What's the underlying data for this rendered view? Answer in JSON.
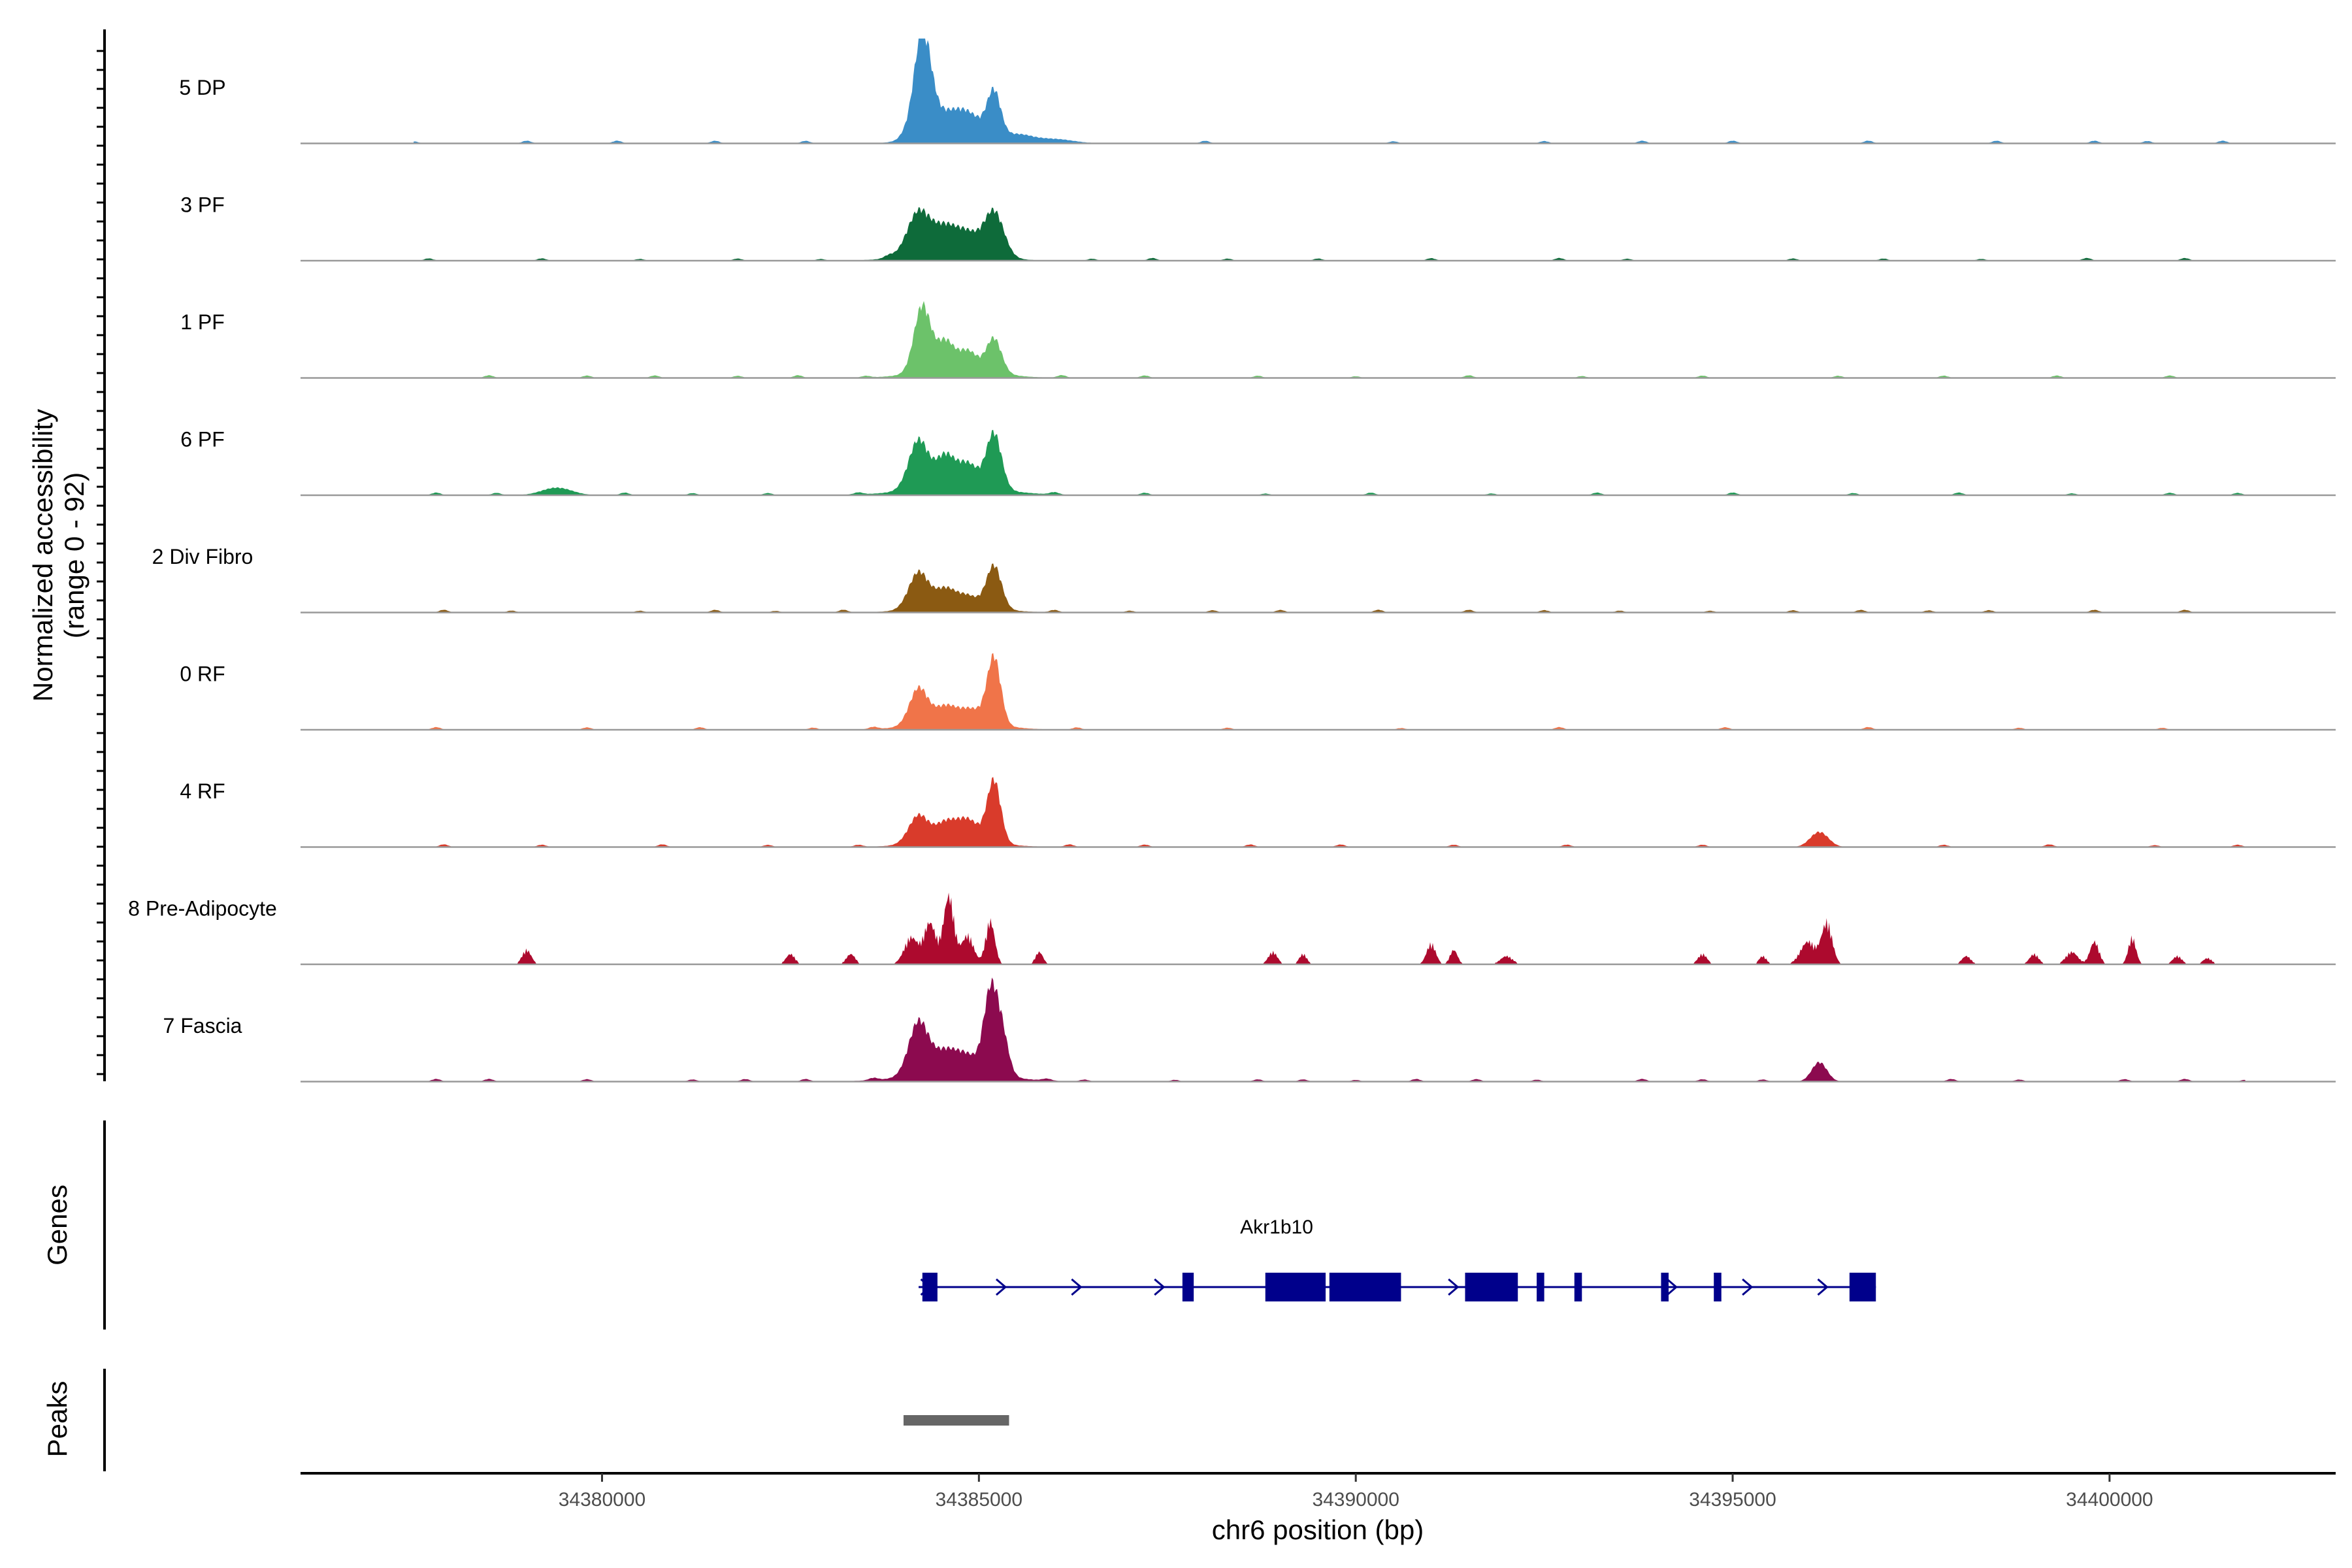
{
  "chart_data": {
    "type": "area",
    "title": "",
    "ylabel_line1": "Normalized accessibility",
    "ylabel_line2": "(range 0 - 92)",
    "ylim": [
      0,
      92
    ],
    "xlabel": "chr6 position (bp)",
    "xlim": [
      34376000,
      34403000
    ],
    "x_ticks": [
      34380000,
      34385000,
      34390000,
      34395000,
      34400000
    ],
    "x_tick_labels": [
      "34380000",
      "34385000",
      "34390000",
      "34395000",
      "34400000"
    ],
    "grid": false,
    "tracks": [
      {
        "name": "5 DP",
        "color": "#3a8dc7",
        "peaks": [
          [
            34384250,
            90,
            110
          ],
          [
            34384550,
            28,
            300
          ],
          [
            34384900,
            14,
            180
          ],
          [
            34385200,
            42,
            90
          ],
          [
            34385500,
            8,
            200
          ],
          [
            34386000,
            4,
            250
          ]
        ],
        "noise": [
          34377500,
          34379000,
          34380200,
          34381500,
          34382700,
          34384000,
          34388000,
          34390500,
          34392500,
          34393800,
          34395000,
          34396800,
          34398500,
          34399800,
          34400500,
          34401500
        ]
      },
      {
        "name": "3 PF",
        "color": "#0e6b3a",
        "peaks": [
          [
            34384200,
            40,
            150
          ],
          [
            34384550,
            22,
            150
          ],
          [
            34384850,
            18,
            150
          ],
          [
            34385200,
            42,
            130
          ],
          [
            34384600,
            8,
            500
          ]
        ],
        "noise": [
          34377700,
          34379200,
          34380500,
          34381800,
          34382900,
          34383800,
          34386500,
          34387300,
          34388300,
          34389500,
          34391000,
          34392700,
          34393600,
          34395800,
          34397000,
          34398300,
          34399700,
          34401000
        ]
      },
      {
        "name": "1 PF",
        "color": "#6cc26a",
        "peaks": [
          [
            34384250,
            62,
            110
          ],
          [
            34384550,
            26,
            110
          ],
          [
            34384850,
            18,
            130
          ],
          [
            34385200,
            32,
            100
          ],
          [
            34384700,
            8,
            500
          ]
        ],
        "noise": [
          34378500,
          34379800,
          34380700,
          34381800,
          34382600,
          34383500,
          34386100,
          34387200,
          34388700,
          34390000,
          34391500,
          34393000,
          34394600,
          34396400,
          34397800,
          34399300,
          34400800
        ]
      },
      {
        "name": "6 PF",
        "color": "#1f9a55",
        "peaks": [
          [
            34384200,
            46,
            130
          ],
          [
            34384550,
            28,
            120
          ],
          [
            34384850,
            22,
            140
          ],
          [
            34385200,
            52,
            100
          ],
          [
            34384700,
            8,
            600
          ],
          [
            34379400,
            7,
            200
          ]
        ],
        "noise": [
          34377800,
          34378600,
          34380300,
          34381200,
          34382200,
          34383400,
          34386000,
          34387200,
          34388800,
          34390200,
          34391800,
          34393200,
          34395000,
          34396600,
          34398000,
          34399500,
          34400800,
          34401700
        ]
      },
      {
        "name": "2 Div Fibro",
        "color": "#8b5a12",
        "peaks": [
          [
            34384200,
            34,
            130
          ],
          [
            34384550,
            16,
            130
          ],
          [
            34384850,
            10,
            140
          ],
          [
            34385200,
            40,
            100
          ],
          [
            34384700,
            6,
            500
          ]
        ],
        "noise": [
          34377900,
          34378800,
          34380500,
          34381500,
          34382300,
          34383200,
          34386000,
          34387000,
          34388100,
          34389000,
          34390300,
          34391500,
          34392500,
          34393500,
          34394700,
          34395800,
          34396700,
          34397600,
          34398400,
          34399800,
          34401000
        ]
      },
      {
        "name": "0 RF",
        "color": "#f07449",
        "peaks": [
          [
            34384200,
            34,
            120
          ],
          [
            34384550,
            14,
            140
          ],
          [
            34384900,
            12,
            160
          ],
          [
            34385200,
            62,
            90
          ],
          [
            34384700,
            8,
            500
          ]
        ],
        "noise": [
          34377800,
          34379800,
          34381300,
          34382800,
          34383600,
          34386300,
          34388300,
          34390600,
          34392700,
          34394900,
          34396800,
          34398800,
          34400700
        ]
      },
      {
        "name": "4 RF",
        "color": "#d93b2b",
        "peaks": [
          [
            34384200,
            26,
            130
          ],
          [
            34384550,
            16,
            130
          ],
          [
            34384850,
            20,
            150
          ],
          [
            34385200,
            58,
            90
          ],
          [
            34384700,
            6,
            500
          ],
          [
            34396150,
            14,
            120
          ]
        ],
        "noise": [
          34377900,
          34379200,
          34380800,
          34382200,
          34383400,
          34386200,
          34387200,
          34388600,
          34389800,
          34391300,
          34392800,
          34394600,
          34397800,
          34399200,
          34400600,
          34401700
        ]
      },
      {
        "name": "8 Pre-Adipocyte",
        "color": "#ad0a2e",
        "peaks": [
          [
            34384100,
            26,
            90
          ],
          [
            34384350,
            40,
            80
          ],
          [
            34384600,
            66,
            70
          ],
          [
            34384850,
            28,
            80
          ],
          [
            34385150,
            42,
            60
          ],
          [
            34379000,
            14,
            60
          ],
          [
            34382500,
            10,
            60
          ],
          [
            34383300,
            10,
            60
          ],
          [
            34385800,
            12,
            50
          ],
          [
            34388900,
            12,
            60
          ],
          [
            34389300,
            10,
            50
          ],
          [
            34391000,
            20,
            60
          ],
          [
            34391300,
            14,
            50
          ],
          [
            34392000,
            8,
            80
          ],
          [
            34394600,
            10,
            60
          ],
          [
            34395400,
            8,
            50
          ],
          [
            34396000,
            22,
            100
          ],
          [
            34396250,
            40,
            70
          ],
          [
            34398100,
            8,
            60
          ],
          [
            34399000,
            10,
            60
          ],
          [
            34399500,
            12,
            80
          ],
          [
            34399800,
            22,
            60
          ],
          [
            34400300,
            26,
            50
          ],
          [
            34400900,
            8,
            60
          ],
          [
            34401300,
            6,
            60
          ]
        ],
        "noise": []
      },
      {
        "name": "7 Fascia",
        "color": "#8c0a4f",
        "peaks": [
          [
            34384200,
            50,
            130
          ],
          [
            34384550,
            20,
            150
          ],
          [
            34384850,
            16,
            150
          ],
          [
            34385150,
            72,
            90
          ],
          [
            34385300,
            40,
            90
          ],
          [
            34384700,
            8,
            600
          ],
          [
            34396150,
            18,
            100
          ]
        ],
        "noise": [
          34377800,
          34378500,
          34379800,
          34381200,
          34381900,
          34382700,
          34383600,
          34385900,
          34386400,
          34387600,
          34388700,
          34389300,
          34390000,
          34390800,
          34391600,
          34392400,
          34393800,
          34394600,
          34395400,
          34397900,
          34398800,
          34400200,
          34401000,
          34401800
        ]
      }
    ],
    "gene": {
      "name": "Akr1b10",
      "strand": "+",
      "start": 34384200,
      "end": 34396900,
      "exons": [
        [
          34384250,
          34384450
        ],
        [
          34387700,
          34387850
        ],
        [
          34388800,
          34389600
        ],
        [
          34389650,
          34390600
        ],
        [
          34391450,
          34392150
        ],
        [
          34392400,
          34392500
        ],
        [
          34392900,
          34393000
        ],
        [
          34394050,
          34394150
        ],
        [
          34394750,
          34394850
        ],
        [
          34396550,
          34396900
        ]
      ],
      "arrows": [
        34384300,
        34385300,
        34386300,
        34387400,
        34391300,
        34394200,
        34395200,
        34396200
      ]
    },
    "peaks_track": {
      "label": "Peaks",
      "intervals": [
        [
          34384000,
          34385400
        ]
      ]
    },
    "genes_track_label": "Genes"
  }
}
